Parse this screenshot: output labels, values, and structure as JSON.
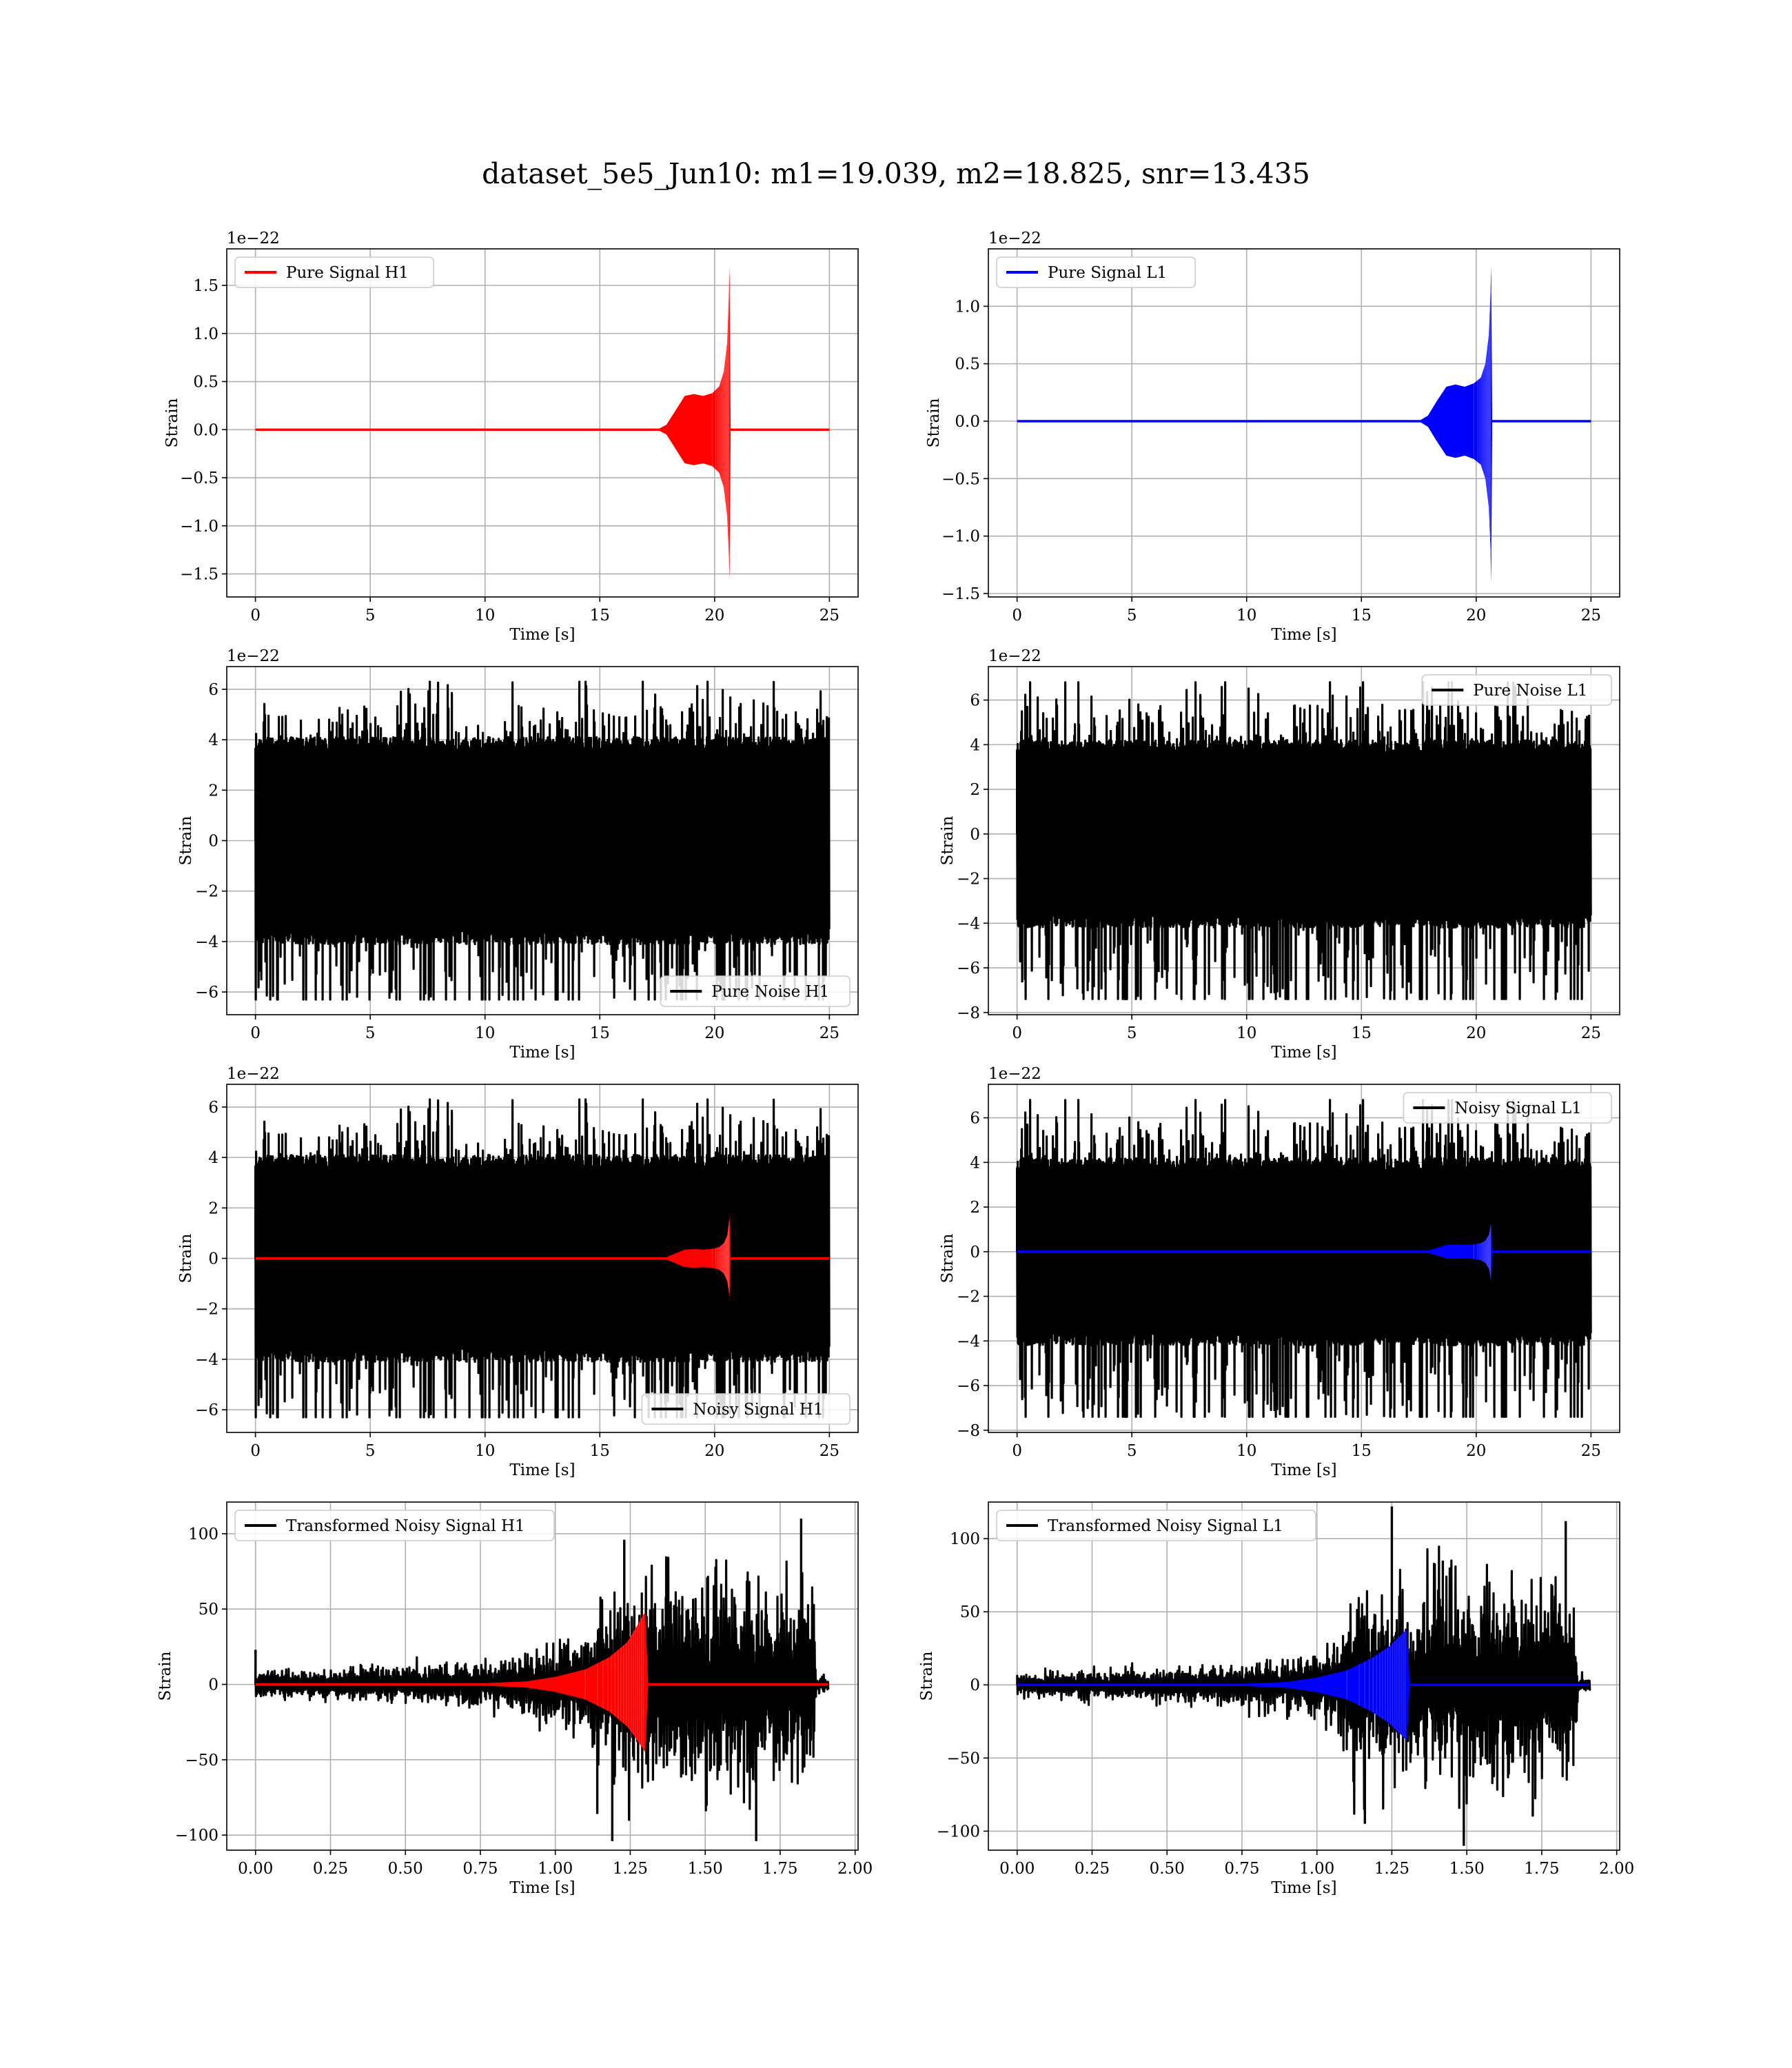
{
  "figure_title": "dataset_5e5_Jun10: m1=19.039, m2=18.825, snr=13.435",
  "colors": {
    "h1_signal": "#ff0000",
    "l1_signal": "#0000ff",
    "noise": "#000000",
    "grid": "#b0b0b0",
    "legend_border": "#cccccc"
  },
  "chart_data": [
    {
      "id": "pure-signal-h1",
      "type": "line",
      "title": "",
      "xlabel": "Time [s]",
      "ylabel": "Strain",
      "offset_text": "1e−22",
      "xlim": [
        -1.25,
        26.25
      ],
      "ylim": [
        -1.74,
        1.88
      ],
      "xticks": [
        0,
        5,
        10,
        15,
        20,
        25
      ],
      "xtick_labels": [
        "0",
        "5",
        "10",
        "15",
        "20",
        "25"
      ],
      "yticks": [
        -1.5,
        -1.0,
        -0.5,
        0.0,
        0.5,
        1.0,
        1.5
      ],
      "ytick_labels": [
        "−1.5",
        "−1.0",
        "−0.5",
        "0.0",
        "0.5",
        "1.0",
        "1.5"
      ],
      "grid": true,
      "legend": {
        "location": "upper-left",
        "entries": [
          {
            "label": "Pure Signal H1",
            "color": "#ff0000"
          }
        ]
      },
      "series": [
        {
          "name": "Pure Signal H1",
          "color": "#ff0000",
          "kind": "envelope",
          "x": [
            0,
            17.5,
            17.9,
            18.3,
            18.7,
            19.1,
            19.5,
            19.9,
            20.2,
            20.4,
            20.55,
            20.62,
            20.65,
            20.7,
            25
          ],
          "upper": [
            0,
            0.0,
            0.05,
            0.2,
            0.35,
            0.37,
            0.35,
            0.38,
            0.45,
            0.6,
            0.9,
            1.4,
            1.7,
            0,
            0
          ],
          "lower": [
            0,
            0.0,
            -0.05,
            -0.2,
            -0.35,
            -0.37,
            -0.35,
            -0.38,
            -0.45,
            -0.6,
            -0.9,
            -1.3,
            -1.56,
            0,
            0
          ]
        }
      ]
    },
    {
      "id": "pure-signal-l1",
      "type": "line",
      "title": "",
      "xlabel": "Time [s]",
      "ylabel": "Strain",
      "offset_text": "1e−22",
      "xlim": [
        -1.25,
        26.25
      ],
      "ylim": [
        -1.53,
        1.5
      ],
      "xticks": [
        0,
        5,
        10,
        15,
        20,
        25
      ],
      "xtick_labels": [
        "0",
        "5",
        "10",
        "15",
        "20",
        "25"
      ],
      "yticks": [
        -1.5,
        -1.0,
        -0.5,
        0.0,
        0.5,
        1.0
      ],
      "ytick_labels": [
        "−1.5",
        "−1.0",
        "−0.5",
        "0.0",
        "0.5",
        "1.0"
      ],
      "grid": true,
      "legend": {
        "location": "upper-left",
        "entries": [
          {
            "label": "Pure Signal L1",
            "color": "#0000ff"
          }
        ]
      },
      "series": [
        {
          "name": "Pure Signal L1",
          "color": "#0000ff",
          "kind": "envelope",
          "x": [
            0,
            17.5,
            17.9,
            18.3,
            18.7,
            19.1,
            19.5,
            19.9,
            20.2,
            20.4,
            20.55,
            20.62,
            20.65,
            20.7,
            25
          ],
          "upper": [
            0,
            0.0,
            0.05,
            0.18,
            0.3,
            0.32,
            0.3,
            0.33,
            0.38,
            0.5,
            0.75,
            1.1,
            1.35,
            0,
            0
          ],
          "lower": [
            0,
            0.0,
            -0.05,
            -0.18,
            -0.3,
            -0.32,
            -0.3,
            -0.33,
            -0.38,
            -0.5,
            -0.75,
            -1.1,
            -1.41,
            0,
            0
          ]
        }
      ]
    },
    {
      "id": "pure-noise-h1",
      "type": "line",
      "title": "",
      "xlabel": "Time [s]",
      "ylabel": "Strain",
      "offset_text": "1e−22",
      "xlim": [
        -1.25,
        26.25
      ],
      "ylim": [
        -6.9,
        6.9
      ],
      "xticks": [
        0,
        5,
        10,
        15,
        20,
        25
      ],
      "xtick_labels": [
        "0",
        "5",
        "10",
        "15",
        "20",
        "25"
      ],
      "yticks": [
        -6,
        -4,
        -2,
        0,
        2,
        4,
        6
      ],
      "ytick_labels": [
        "−6",
        "−4",
        "−2",
        "0",
        "2",
        "4",
        "6"
      ],
      "grid": true,
      "legend": {
        "location": "lower-right",
        "entries": [
          {
            "label": "Pure Noise H1",
            "color": "#000000"
          }
        ]
      },
      "series": [
        {
          "name": "Pure Noise H1",
          "color": "#000000",
          "kind": "noise",
          "x_range": [
            0,
            25
          ],
          "band": 3.5,
          "max": 6.3,
          "min": -6.3,
          "seed": 11
        }
      ]
    },
    {
      "id": "pure-noise-l1",
      "type": "line",
      "title": "",
      "xlabel": "Time [s]",
      "ylabel": "Strain",
      "offset_text": "1e−22",
      "xlim": [
        -1.25,
        26.25
      ],
      "ylim": [
        -8.1,
        7.5
      ],
      "xticks": [
        0,
        5,
        10,
        15,
        20,
        25
      ],
      "xtick_labels": [
        "0",
        "5",
        "10",
        "15",
        "20",
        "25"
      ],
      "yticks": [
        -8,
        -6,
        -4,
        -2,
        0,
        2,
        4,
        6
      ],
      "ytick_labels": [
        "−8",
        "−6",
        "−4",
        "−2",
        "0",
        "2",
        "4",
        "6"
      ],
      "grid": true,
      "legend": {
        "location": "upper-right",
        "entries": [
          {
            "label": "Pure Noise L1",
            "color": "#000000"
          }
        ]
      },
      "series": [
        {
          "name": "Pure Noise L1",
          "color": "#000000",
          "kind": "noise",
          "x_range": [
            0,
            25
          ],
          "band": 3.6,
          "max": 6.8,
          "min": -7.4,
          "seed": 23
        }
      ]
    },
    {
      "id": "noisy-signal-h1",
      "type": "line",
      "title": "",
      "xlabel": "Time [s]",
      "ylabel": "Strain",
      "offset_text": "1e−22",
      "xlim": [
        -1.25,
        26.25
      ],
      "ylim": [
        -6.9,
        6.9
      ],
      "xticks": [
        0,
        5,
        10,
        15,
        20,
        25
      ],
      "xtick_labels": [
        "0",
        "5",
        "10",
        "15",
        "20",
        "25"
      ],
      "yticks": [
        -6,
        -4,
        -2,
        0,
        2,
        4,
        6
      ],
      "ytick_labels": [
        "−6",
        "−4",
        "−2",
        "0",
        "2",
        "4",
        "6"
      ],
      "grid": true,
      "legend": {
        "location": "lower-right",
        "entries": [
          {
            "label": "Noisy Signal H1",
            "color": "#000000"
          }
        ]
      },
      "series": [
        {
          "name": "Noisy Signal H1",
          "color": "#000000",
          "kind": "noise",
          "x_range": [
            0,
            25
          ],
          "band": 3.5,
          "max": 6.3,
          "min": -6.3,
          "seed": 11
        },
        {
          "color": "#ff0000",
          "kind": "envelope",
          "x": [
            0,
            17.5,
            17.9,
            18.3,
            18.7,
            19.1,
            19.5,
            19.9,
            20.2,
            20.4,
            20.55,
            20.62,
            20.65,
            20.7,
            25
          ],
          "upper": [
            0,
            0.0,
            0.05,
            0.2,
            0.35,
            0.37,
            0.35,
            0.38,
            0.45,
            0.6,
            0.9,
            1.4,
            1.7,
            0,
            0
          ],
          "lower": [
            0,
            0.0,
            -0.05,
            -0.2,
            -0.35,
            -0.37,
            -0.35,
            -0.38,
            -0.45,
            -0.6,
            -0.9,
            -1.3,
            -1.56,
            0,
            0
          ]
        }
      ]
    },
    {
      "id": "noisy-signal-l1",
      "type": "line",
      "title": "",
      "xlabel": "Time [s]",
      "ylabel": "Strain",
      "offset_text": "1e−22",
      "xlim": [
        -1.25,
        26.25
      ],
      "ylim": [
        -8.1,
        7.5
      ],
      "xticks": [
        0,
        5,
        10,
        15,
        20,
        25
      ],
      "xtick_labels": [
        "0",
        "5",
        "10",
        "15",
        "20",
        "25"
      ],
      "yticks": [
        -8,
        -6,
        -4,
        -2,
        0,
        2,
        4,
        6
      ],
      "ytick_labels": [
        "−8",
        "−6",
        "−4",
        "−2",
        "0",
        "2",
        "4",
        "6"
      ],
      "grid": true,
      "legend": {
        "location": "upper-right",
        "entries": [
          {
            "label": "Noisy Signal L1",
            "color": "#000000"
          }
        ]
      },
      "series": [
        {
          "name": "Noisy Signal L1",
          "color": "#000000",
          "kind": "noise",
          "x_range": [
            0,
            25
          ],
          "band": 3.6,
          "max": 6.8,
          "min": -7.4,
          "seed": 23
        },
        {
          "color": "#0000ff",
          "kind": "envelope",
          "x": [
            0,
            17.5,
            17.9,
            18.3,
            18.7,
            19.1,
            19.5,
            19.9,
            20.2,
            20.4,
            20.55,
            20.62,
            20.65,
            20.7,
            25
          ],
          "upper": [
            0,
            0.0,
            0.05,
            0.18,
            0.3,
            0.32,
            0.3,
            0.33,
            0.38,
            0.5,
            0.75,
            1.1,
            1.35,
            0,
            0
          ],
          "lower": [
            0,
            0.0,
            -0.05,
            -0.18,
            -0.3,
            -0.32,
            -0.3,
            -0.33,
            -0.38,
            -0.5,
            -0.75,
            -1.1,
            -1.41,
            0,
            0
          ]
        }
      ]
    },
    {
      "id": "transformed-noisy-signal-h1",
      "type": "line",
      "title": "",
      "xlabel": "Time [s]",
      "ylabel": "Strain",
      "offset_text": "",
      "xlim": [
        -0.096,
        2.01
      ],
      "ylim": [
        -110,
        121
      ],
      "xticks": [
        0.0,
        0.25,
        0.5,
        0.75,
        1.0,
        1.25,
        1.5,
        1.75,
        2.0
      ],
      "xtick_labels": [
        "0.00",
        "0.25",
        "0.50",
        "0.75",
        "1.00",
        "1.25",
        "1.50",
        "1.75",
        "2.00"
      ],
      "yticks": [
        -100,
        -50,
        0,
        50,
        100
      ],
      "ytick_labels": [
        "−100",
        "−50",
        "0",
        "50",
        "100"
      ],
      "grid": true,
      "legend": {
        "location": "upper-left",
        "entries": [
          {
            "label": "Transformed Noisy Signal H1",
            "color": "#000000"
          }
        ]
      },
      "series": [
        {
          "name": "Transformed Noisy Signal H1",
          "color": "#000000",
          "kind": "noise-env",
          "seed": 37,
          "x": [
            0,
            0.02,
            0.3,
            0.7,
            0.9,
            1.05,
            1.1,
            1.14,
            1.3,
            1.6,
            1.86,
            1.87,
            1.91
          ],
          "band": [
            6,
            6,
            8,
            10,
            14,
            22,
            28,
            45,
            50,
            52,
            50,
            4,
            4
          ],
          "spikes": [
            [
              0.0,
              23
            ],
            [
              1.23,
              96
            ],
            [
              1.19,
              -104
            ],
            [
              1.82,
              110
            ],
            [
              1.67,
              -104
            ],
            [
              1.37,
              85
            ],
            [
              1.14,
              -86
            ]
          ]
        },
        {
          "color": "#ff0000",
          "kind": "envelope",
          "x": [
            0,
            0.7,
            0.9,
            1.0,
            1.1,
            1.18,
            1.24,
            1.27,
            1.29,
            1.3,
            1.31,
            1.91
          ],
          "upper": [
            0,
            0.3,
            2,
            5,
            10,
            18,
            28,
            38,
            45,
            48,
            0,
            0
          ],
          "lower": [
            0,
            -0.3,
            -2,
            -5,
            -10,
            -18,
            -28,
            -36,
            -42,
            -45,
            0,
            0
          ]
        }
      ]
    },
    {
      "id": "transformed-noisy-signal-l1",
      "type": "line",
      "title": "",
      "xlabel": "Time [s]",
      "ylabel": "Strain",
      "offset_text": "",
      "xlim": [
        -0.096,
        2.01
      ],
      "ylim": [
        -113,
        125
      ],
      "xticks": [
        0.0,
        0.25,
        0.5,
        0.75,
        1.0,
        1.25,
        1.5,
        1.75,
        2.0
      ],
      "xtick_labels": [
        "0.00",
        "0.25",
        "0.50",
        "0.75",
        "1.00",
        "1.25",
        "1.50",
        "1.75",
        "2.00"
      ],
      "yticks": [
        -100,
        -50,
        0,
        50,
        100
      ],
      "ytick_labels": [
        "−100",
        "−50",
        "0",
        "50",
        "100"
      ],
      "grid": true,
      "legend": {
        "location": "upper-left",
        "entries": [
          {
            "label": "Transformed Noisy Signal L1",
            "color": "#000000"
          }
        ]
      },
      "series": [
        {
          "name": "Transformed Noisy Signal L1",
          "color": "#000000",
          "kind": "noise-env",
          "seed": 53,
          "x": [
            0,
            0.02,
            0.3,
            0.7,
            0.9,
            1.05,
            1.1,
            1.12,
            1.3,
            1.6,
            1.86,
            1.87,
            1.91
          ],
          "band": [
            6,
            6,
            8,
            10,
            14,
            22,
            28,
            50,
            52,
            52,
            50,
            4,
            4
          ],
          "spikes": [
            [
              1.25,
              122
            ],
            [
              1.49,
              -110
            ],
            [
              1.83,
              112
            ],
            [
              1.16,
              -95
            ],
            [
              1.42,
              85
            ],
            [
              1.72,
              -90
            ]
          ]
        },
        {
          "color": "#0000ff",
          "kind": "envelope",
          "x": [
            0,
            0.7,
            0.9,
            1.0,
            1.1,
            1.18,
            1.24,
            1.27,
            1.29,
            1.3,
            1.31,
            1.91
          ],
          "upper": [
            0,
            0.3,
            2,
            5,
            10,
            18,
            26,
            32,
            36,
            38,
            0,
            0
          ],
          "lower": [
            0,
            -0.3,
            -2,
            -5,
            -10,
            -18,
            -26,
            -32,
            -36,
            -38,
            0,
            0
          ]
        }
      ]
    }
  ]
}
